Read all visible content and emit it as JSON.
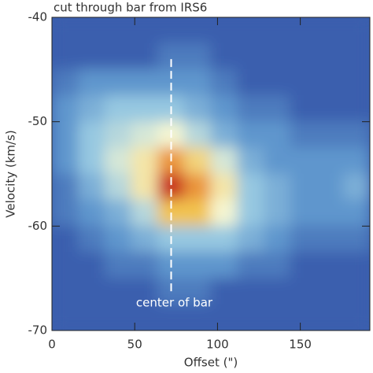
{
  "chart_data": {
    "type": "heatmap",
    "title": "cut through bar from IRS6",
    "x_label": "Offset (\")",
    "y_label": "Velocity (km/s)",
    "x": [
      8,
      24,
      40,
      56,
      72,
      88,
      104,
      120,
      136,
      152,
      168,
      184
    ],
    "y": [
      -41.25,
      -43.75,
      -46.25,
      -48.75,
      -51.25,
      -53.75,
      -56.25,
      -58.75,
      -61.25,
      -63.75,
      -66.25,
      -68.75
    ],
    "z": [
      [
        1,
        1,
        1,
        1,
        1,
        1,
        1,
        1,
        1,
        1,
        1,
        1
      ],
      [
        1,
        1,
        1,
        1,
        1.5,
        1.5,
        1,
        1,
        1,
        1,
        1,
        1
      ],
      [
        1.5,
        2,
        2,
        2,
        2,
        2,
        1.5,
        1,
        1,
        1,
        1,
        1
      ],
      [
        2,
        2.5,
        3,
        3,
        3,
        2.5,
        2,
        1.5,
        1.5,
        1,
        1,
        1
      ],
      [
        2,
        3,
        3.5,
        4,
        4.5,
        3.5,
        2.5,
        2,
        2,
        1.5,
        1.5,
        1.5
      ],
      [
        2,
        3,
        4,
        5,
        7,
        5.5,
        4,
        2.5,
        2,
        2,
        2,
        2
      ],
      [
        1.5,
        2.5,
        3.5,
        5,
        9.5,
        7,
        5,
        3,
        2.5,
        2,
        2,
        2.5
      ],
      [
        1.5,
        2,
        2.5,
        3.5,
        6,
        6,
        4.5,
        3,
        2.5,
        2,
        2,
        2
      ],
      [
        1,
        1.5,
        2,
        2.5,
        3,
        3,
        3,
        2.5,
        2,
        1.5,
        1.5,
        1.5
      ],
      [
        1,
        1,
        1.5,
        1.5,
        2,
        2,
        2,
        1.5,
        1.5,
        1,
        1,
        1
      ],
      [
        1,
        1,
        1,
        1,
        1.5,
        1.5,
        1,
        1,
        1,
        1,
        1,
        1
      ],
      [
        1,
        1,
        1,
        1,
        1,
        1,
        1,
        1,
        1,
        1,
        1,
        1
      ]
    ],
    "xlim": [
      0,
      192
    ],
    "ylim": [
      -70,
      -40
    ],
    "xticks": [
      0,
      50,
      100,
      150
    ],
    "yticks": [
      -70,
      -60,
      -50,
      -40
    ],
    "marker_x": 72,
    "marker_y": [
      -44,
      -66.4
    ],
    "annotation": "center of bar"
  }
}
